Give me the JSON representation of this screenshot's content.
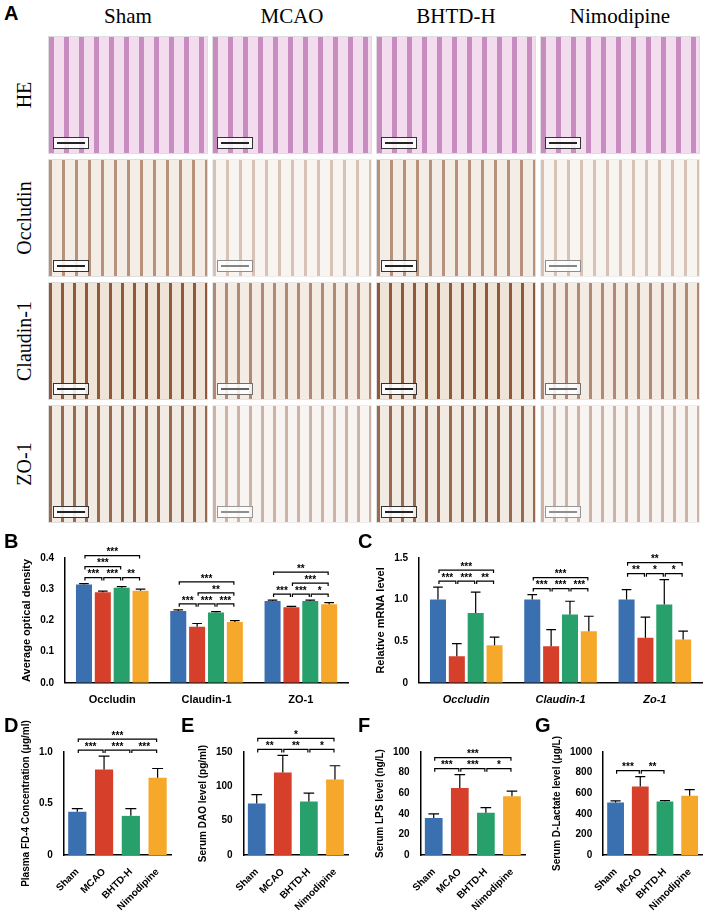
{
  "panel_a": {
    "label": "A",
    "columns": [
      "Sham",
      "MCAO",
      "BHTD-H",
      "Nimodipine"
    ],
    "rows": [
      "HE",
      "Occludin",
      "Claudin-1",
      "ZO-1"
    ]
  },
  "chart_data": [
    {
      "panel": "B",
      "type": "bar",
      "y_label": "Average optical density",
      "categories": [
        "Occludin",
        "Claudin-1",
        "ZO-1"
      ],
      "series": [
        {
          "color": "#3a6fb0",
          "values": [
            0.315,
            0.23,
            0.262
          ],
          "errors": [
            0.003,
            0.004,
            0.003
          ]
        },
        {
          "color": "#d6402b",
          "values": [
            0.29,
            0.18,
            0.242
          ],
          "errors": [
            0.004,
            0.01,
            0.003
          ]
        },
        {
          "color": "#27a06b",
          "values": [
            0.305,
            0.225,
            0.262
          ],
          "errors": [
            0.003,
            0.003,
            0.003
          ]
        },
        {
          "color": "#f6a82a",
          "values": [
            0.295,
            0.195,
            0.252
          ],
          "errors": [
            0.005,
            0.004,
            0.005
          ]
        }
      ],
      "ylim": [
        0,
        0.4
      ],
      "yticks": [
        {
          "value": 0,
          "label": "0.0"
        },
        0.1,
        0.2,
        0.3,
        0.4
      ],
      "grid": false,
      "significance": [
        {
          "category": 0,
          "pair": [
            0,
            1
          ],
          "label": "***"
        },
        {
          "category": 0,
          "pair": [
            1,
            2
          ],
          "label": "***"
        },
        {
          "category": 0,
          "pair": [
            2,
            3
          ],
          "label": "**"
        },
        {
          "category": 0,
          "pair": [
            0,
            2
          ],
          "label": "***"
        },
        {
          "category": 0,
          "pair": [
            0,
            3
          ],
          "label": "***"
        },
        {
          "category": 1,
          "pair": [
            0,
            1
          ],
          "label": "***"
        },
        {
          "category": 1,
          "pair": [
            1,
            2
          ],
          "label": "***"
        },
        {
          "category": 1,
          "pair": [
            2,
            3
          ],
          "label": "***"
        },
        {
          "category": 1,
          "pair": [
            1,
            3
          ],
          "label": "**"
        },
        {
          "category": 1,
          "pair": [
            0,
            3
          ],
          "label": "***"
        },
        {
          "category": 2,
          "pair": [
            0,
            1
          ],
          "label": "***"
        },
        {
          "category": 2,
          "pair": [
            1,
            2
          ],
          "label": "***"
        },
        {
          "category": 2,
          "pair": [
            2,
            3
          ],
          "label": "*"
        },
        {
          "category": 2,
          "pair": [
            1,
            3
          ],
          "label": "***"
        },
        {
          "category": 2,
          "pair": [
            0,
            3
          ],
          "label": "**"
        }
      ]
    },
    {
      "panel": "C",
      "type": "bar",
      "y_label": "Relative mRNA level",
      "categories": [
        "Occludin",
        "Claudin-1",
        "Zo-1"
      ],
      "series": [
        {
          "color": "#3a6fb0",
          "values": [
            1.0,
            1.0,
            1.0
          ],
          "errors": [
            0.15,
            0.06,
            0.12
          ]
        },
        {
          "color": "#d6402b",
          "values": [
            0.32,
            0.44,
            0.54
          ],
          "errors": [
            0.15,
            0.2,
            0.25
          ]
        },
        {
          "color": "#27a06b",
          "values": [
            0.84,
            0.82,
            0.94
          ],
          "errors": [
            0.25,
            0.16,
            0.3
          ]
        },
        {
          "color": "#f6a82a",
          "values": [
            0.45,
            0.62,
            0.52
          ],
          "errors": [
            0.1,
            0.18,
            0.1
          ]
        }
      ],
      "ylim": [
        0,
        1.5
      ],
      "yticks": [
        0,
        0.5,
        {
          "value": 1,
          "label": "1.0"
        },
        1.5
      ],
      "grid": false,
      "significance": [
        {
          "category": 0,
          "pair": [
            0,
            1
          ],
          "label": "***"
        },
        {
          "category": 0,
          "pair": [
            1,
            2
          ],
          "label": "***"
        },
        {
          "category": 0,
          "pair": [
            2,
            3
          ],
          "label": "**"
        },
        {
          "category": 0,
          "pair": [
            0,
            3
          ],
          "label": "***"
        },
        {
          "category": 1,
          "pair": [
            0,
            1
          ],
          "label": "***"
        },
        {
          "category": 1,
          "pair": [
            1,
            2
          ],
          "label": "***"
        },
        {
          "category": 1,
          "pair": [
            2,
            3
          ],
          "label": "***"
        },
        {
          "category": 1,
          "pair": [
            0,
            3
          ],
          "label": "***"
        },
        {
          "category": 2,
          "pair": [
            0,
            1
          ],
          "label": "**"
        },
        {
          "category": 2,
          "pair": [
            1,
            2
          ],
          "label": "*"
        },
        {
          "category": 2,
          "pair": [
            2,
            3
          ],
          "label": "*"
        },
        {
          "category": 2,
          "pair": [
            0,
            3
          ],
          "label": "**"
        }
      ]
    },
    {
      "panel": "D",
      "type": "bar",
      "y_label": "Plasma FD-4 Concentration (μg/ml)",
      "categories": [
        "Sham",
        "MCAO",
        "BHTD-H",
        "Nimodipine"
      ],
      "values": [
        0.42,
        0.83,
        0.38,
        0.75
      ],
      "errors": [
        0.03,
        0.13,
        0.07,
        0.09
      ],
      "colors": [
        "#3a6fb0",
        "#d6402b",
        "#27a06b",
        "#f6a82a"
      ],
      "ylim": [
        0,
        1.0
      ],
      "yticks": [
        0,
        0.5,
        {
          "value": 1,
          "label": "1.0"
        }
      ],
      "grid": false,
      "significance": [
        {
          "pair": [
            0,
            1
          ],
          "label": "***"
        },
        {
          "pair": [
            1,
            2
          ],
          "label": "***"
        },
        {
          "pair": [
            2,
            3
          ],
          "label": "***"
        },
        {
          "pair": [
            0,
            3
          ],
          "label": "***"
        }
      ]
    },
    {
      "panel": "E",
      "type": "bar",
      "y_label": "Serum DAO level (pg/ml)",
      "categories": [
        "Sham",
        "MCAO",
        "BHTD-H",
        "Nimodipine"
      ],
      "values": [
        75,
        120,
        78,
        110
      ],
      "errors": [
        13,
        25,
        12,
        20
      ],
      "colors": [
        "#3a6fb0",
        "#d6402b",
        "#27a06b",
        "#f6a82a"
      ],
      "ylim": [
        0,
        150
      ],
      "yticks": [
        0,
        50,
        100,
        150
      ],
      "grid": false,
      "significance": [
        {
          "pair": [
            0,
            1
          ],
          "label": "**"
        },
        {
          "pair": [
            1,
            2
          ],
          "label": "**"
        },
        {
          "pair": [
            2,
            3
          ],
          "label": "*"
        },
        {
          "pair": [
            0,
            3
          ],
          "label": "*"
        }
      ]
    },
    {
      "panel": "F",
      "type": "bar",
      "y_label": "Serum LPS level (ng/L)",
      "categories": [
        "Sham",
        "MCAO",
        "BHTD-H",
        "Nimodipine"
      ],
      "values": [
        36,
        65,
        41,
        57
      ],
      "errors": [
        4,
        13,
        5,
        5
      ],
      "colors": [
        "#3a6fb0",
        "#d6402b",
        "#27a06b",
        "#f6a82a"
      ],
      "ylim": [
        0,
        100
      ],
      "yticks": [
        0,
        20,
        40,
        60,
        80,
        100
      ],
      "grid": false,
      "significance": [
        {
          "pair": [
            0,
            1
          ],
          "label": "***"
        },
        {
          "pair": [
            1,
            2
          ],
          "label": "***"
        },
        {
          "pair": [
            2,
            3
          ],
          "label": "*"
        },
        {
          "pair": [
            0,
            3
          ],
          "label": "***"
        }
      ]
    },
    {
      "panel": "G",
      "type": "bar",
      "y_label": "Serum D-Lactate level (μg/L)",
      "categories": [
        "Sham",
        "MCAO",
        "BHTD-H",
        "Nimodipine"
      ],
      "values": [
        510,
        665,
        520,
        575
      ],
      "errors": [
        15,
        95,
        8,
        60
      ],
      "colors": [
        "#3a6fb0",
        "#d6402b",
        "#27a06b",
        "#f6a82a"
      ],
      "ylim": [
        0,
        1000
      ],
      "yticks": [
        0,
        200,
        400,
        600,
        800,
        1000
      ],
      "grid": false,
      "significance": [
        {
          "pair": [
            0,
            1
          ],
          "label": "***"
        },
        {
          "pair": [
            1,
            2
          ],
          "label": "**"
        }
      ]
    }
  ]
}
